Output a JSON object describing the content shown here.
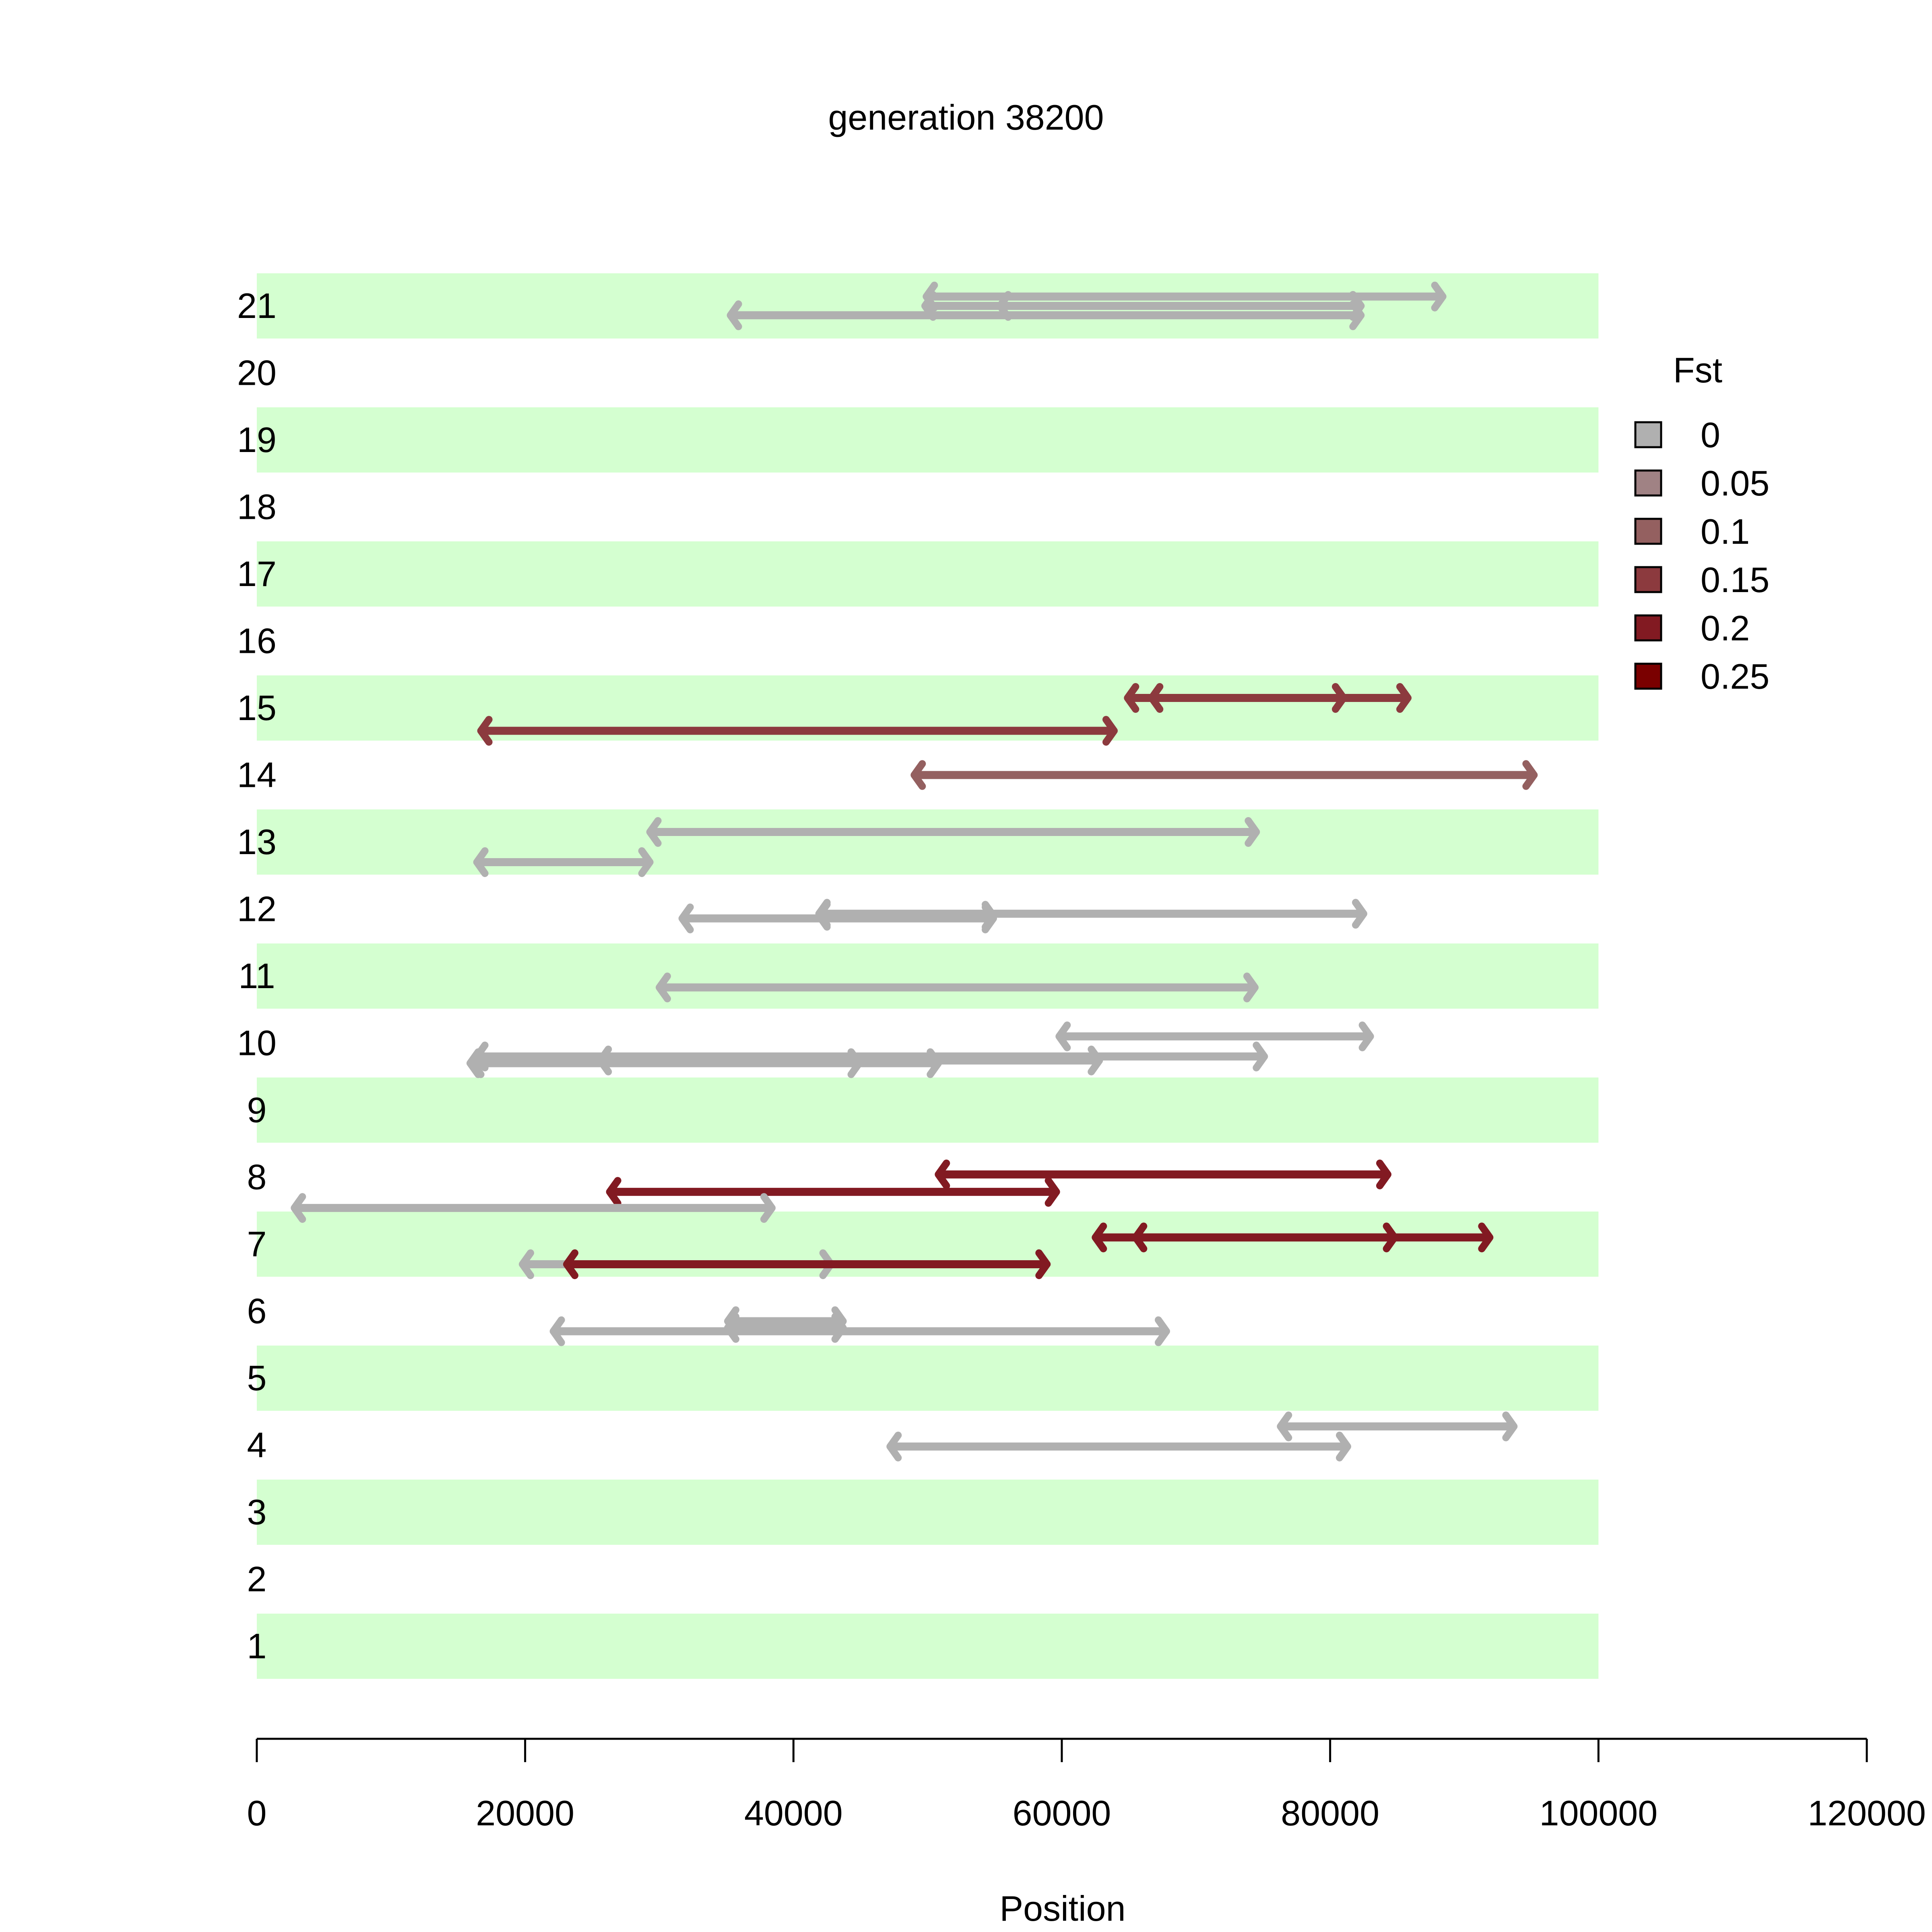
{
  "chart_data": {
    "type": "segments",
    "title": "generation 38200",
    "xlabel": "Position",
    "ylabel": "",
    "xlim": [
      0,
      120000
    ],
    "x_ticks": [
      0,
      20000,
      40000,
      60000,
      80000,
      100000,
      120000
    ],
    "x_tick_labels": [
      "0",
      "20000",
      "40000",
      "60000",
      "80000",
      "100000",
      "120000"
    ],
    "rows": [
      "1",
      "2",
      "3",
      "4",
      "5",
      "6",
      "7",
      "8",
      "9",
      "10",
      "11",
      "12",
      "13",
      "14",
      "15",
      "16",
      "17",
      "18",
      "19",
      "20",
      "21"
    ],
    "row_band": {
      "start": 0,
      "end": 100000,
      "color": "#d4ffd0",
      "shaded_rows": [
        1,
        3,
        5,
        7,
        9,
        11,
        13,
        15,
        17,
        19,
        21
      ]
    },
    "legend": {
      "title": "Fst",
      "placement": "right",
      "entries": [
        {
          "label": "0",
          "color": "#b0b0b0"
        },
        {
          "label": "0.05",
          "color": "#a08284"
        },
        {
          "label": "0.1",
          "color": "#946060"
        },
        {
          "label": "0.15",
          "color": "#8c3a3e"
        },
        {
          "label": "0.2",
          "color": "#821a22"
        },
        {
          "label": "0.25",
          "color": "#7a0000"
        }
      ]
    },
    "segments": [
      {
        "row": 21,
        "offset": 0.14,
        "start": 49900,
        "end": 88400,
        "color": "#b0b0b0"
      },
      {
        "row": 21,
        "offset": 0.0,
        "start": 49800,
        "end": 82300,
        "color": "#b0b0b0"
      },
      {
        "row": 21,
        "offset": 0.0,
        "start": 55400,
        "end": 82300,
        "color": "#b0b0b0"
      },
      {
        "row": 21,
        "offset": -0.14,
        "start": 35300,
        "end": 82300,
        "color": "#b0b0b0"
      },
      {
        "row": 15,
        "offset": 0.15,
        "start": 64900,
        "end": 85800,
        "color": "#8c3a3e"
      },
      {
        "row": 15,
        "offset": 0.15,
        "start": 66700,
        "end": 81000,
        "color": "#8c3a3e"
      },
      {
        "row": 15,
        "offset": -0.34,
        "start": 16700,
        "end": 63900,
        "color": "#8c3a3e"
      },
      {
        "row": 14,
        "offset": 0.0,
        "start": 49000,
        "end": 95200,
        "color": "#946060"
      },
      {
        "row": 13,
        "offset": 0.15,
        "start": 29300,
        "end": 74500,
        "color": "#b0b0b0"
      },
      {
        "row": 13,
        "offset": -0.3,
        "start": 16400,
        "end": 29300,
        "color": "#b0b0b0"
      },
      {
        "row": 12,
        "offset": -0.07,
        "start": 41900,
        "end": 82500,
        "color": "#b0b0b0"
      },
      {
        "row": 12,
        "offset": -0.14,
        "start": 31700,
        "end": 54900,
        "color": "#b0b0b0"
      },
      {
        "row": 12,
        "offset": -0.1,
        "start": 41900,
        "end": 54900,
        "color": "#b0b0b0"
      },
      {
        "row": 11,
        "offset": -0.17,
        "start": 30000,
        "end": 74400,
        "color": "#b0b0b0"
      },
      {
        "row": 10,
        "offset": 0.1,
        "start": 59800,
        "end": 83000,
        "color": "#b0b0b0"
      },
      {
        "row": 10,
        "offset": -0.2,
        "start": 16400,
        "end": 75100,
        "color": "#b0b0b0"
      },
      {
        "row": 10,
        "offset": -0.26,
        "start": 25600,
        "end": 62800,
        "color": "#b0b0b0"
      },
      {
        "row": 10,
        "offset": -0.3,
        "start": 15900,
        "end": 50800,
        "color": "#b0b0b0"
      },
      {
        "row": 10,
        "offset": -0.3,
        "start": 16100,
        "end": 44900,
        "color": "#b0b0b0"
      },
      {
        "row": 8,
        "offset": 0.04,
        "start": 50800,
        "end": 84300,
        "color": "#821a22"
      },
      {
        "row": 8,
        "offset": -0.22,
        "start": 26300,
        "end": 59600,
        "color": "#821a22"
      },
      {
        "row": 8,
        "offset": -0.46,
        "start": 2800,
        "end": 38400,
        "color": "#b0b0b0"
      },
      {
        "row": 7,
        "offset": 0.1,
        "start": 62500,
        "end": 91900,
        "color": "#821a22"
      },
      {
        "row": 7,
        "offset": 0.1,
        "start": 65500,
        "end": 84800,
        "color": "#821a22"
      },
      {
        "row": 7,
        "offset": -0.3,
        "start": 19800,
        "end": 42800,
        "color": "#b0b0b0"
      },
      {
        "row": 7,
        "offset": -0.3,
        "start": 23100,
        "end": 58900,
        "color": "#821a22"
      },
      {
        "row": 6,
        "offset": -0.15,
        "start": 35100,
        "end": 43700,
        "color": "#b0b0b0"
      },
      {
        "row": 6,
        "offset": -0.3,
        "start": 22100,
        "end": 67800,
        "color": "#b0b0b0"
      },
      {
        "row": 6,
        "offset": -0.25,
        "start": 35100,
        "end": 43700,
        "color": "#b0b0b0"
      },
      {
        "row": 4,
        "offset": 0.28,
        "start": 76300,
        "end": 93700,
        "color": "#b0b0b0"
      },
      {
        "row": 4,
        "offset": -0.02,
        "start": 47200,
        "end": 81300,
        "color": "#b0b0b0"
      }
    ]
  }
}
